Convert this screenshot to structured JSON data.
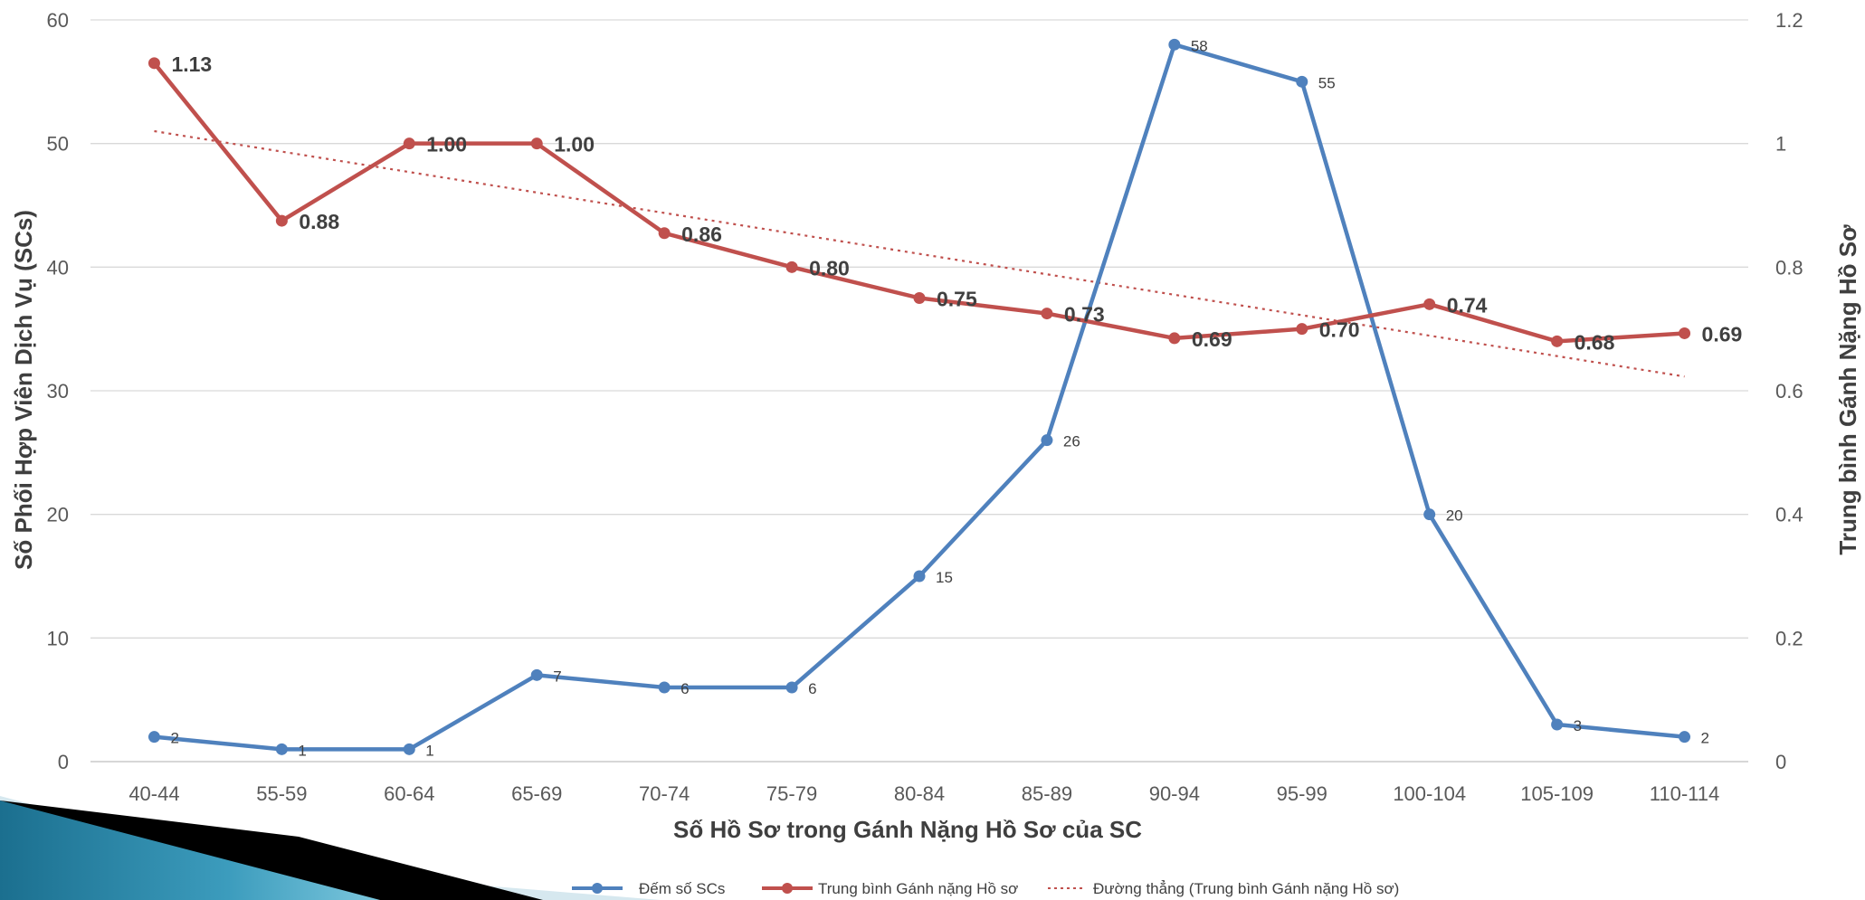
{
  "chart_data": {
    "type": "line",
    "categories": [
      "40-44",
      "55-59",
      "60-64",
      "65-69",
      "70-74",
      "75-79",
      "80-84",
      "85-89",
      "90-94",
      "95-99",
      "100-104",
      "105-109",
      "110-114"
    ],
    "xlabel": "Số Hồ Sơ trong Gánh Nặng Hồ Sơ của SC",
    "ylabel": "Số Phối Hợp Viên Dịch  Vụ (SCs)",
    "y2label": "Trung bình Gánh Nặng Hồ Sơ",
    "ylim": [
      0,
      60
    ],
    "yticks": [
      "0",
      "10",
      "20",
      "30",
      "40",
      "50",
      "60"
    ],
    "y2lim": [
      0,
      1.2
    ],
    "y2ticks": [
      "0",
      "0.2",
      "0.4",
      "0.6",
      "0.8",
      "1",
      "1.2"
    ],
    "grid": true,
    "legend_position": "bottom",
    "series": [
      {
        "name": "Đếm số SCs",
        "axis": "left",
        "color": "#4f81bd",
        "values": [
          2,
          1,
          1,
          7,
          6,
          6,
          15,
          26,
          58,
          55,
          20,
          3,
          2
        ],
        "labels": [
          "2",
          "1",
          "1",
          "7",
          "6",
          "6",
          "15",
          "26",
          "58",
          "55",
          "20",
          "3",
          "2"
        ]
      },
      {
        "name": "Trung bình Gánh nặng Hồ sơ",
        "axis": "right",
        "color": "#c0504d",
        "values": [
          1.13,
          0.875,
          1.0,
          1.0,
          0.855,
          0.8,
          0.75,
          0.725,
          0.685,
          0.7,
          0.74,
          0.68,
          0.693
        ],
        "labels": [
          "1.13",
          "0.88",
          "1.00",
          "1.00",
          "0.86",
          "0.80",
          "0.75",
          "0.73",
          "0.69",
          "0.70",
          "0.74",
          "0.68",
          "0.69"
        ]
      },
      {
        "name": "Đường thẳng (Trung bình Gánh nặng Hồ sơ)",
        "axis": "right",
        "color": "#c0504d",
        "style": "dotted",
        "trend": [
          1.02,
          0.623
        ]
      }
    ]
  },
  "decoration": {
    "banner_colors": [
      "#1b6f8f",
      "#57b4cf",
      "#000000",
      "#d6e8ef"
    ]
  }
}
